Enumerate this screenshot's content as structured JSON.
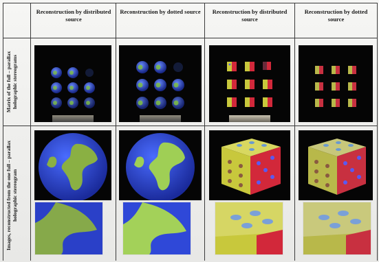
{
  "table": {
    "column_headers": [
      "Reconstruction by distributed source",
      "Reconstruction by dotted source",
      "Reconstruction by distributed source",
      "Reconstruction by dotted source"
    ],
    "row_labels": [
      "Matrix of the full – parallax holographic stereograms",
      "Images, reconstructed from the one full – parallax holographic stereogram"
    ]
  },
  "colors": {
    "globe_ocean": "#2f4fe0",
    "globe_land": "#7fbf3f",
    "dice_face": "#c8c83c",
    "dice_red": "#d2283a",
    "dice_blue": "#5a5af0"
  },
  "icons": [
    "globe-icon",
    "dice-icon"
  ]
}
